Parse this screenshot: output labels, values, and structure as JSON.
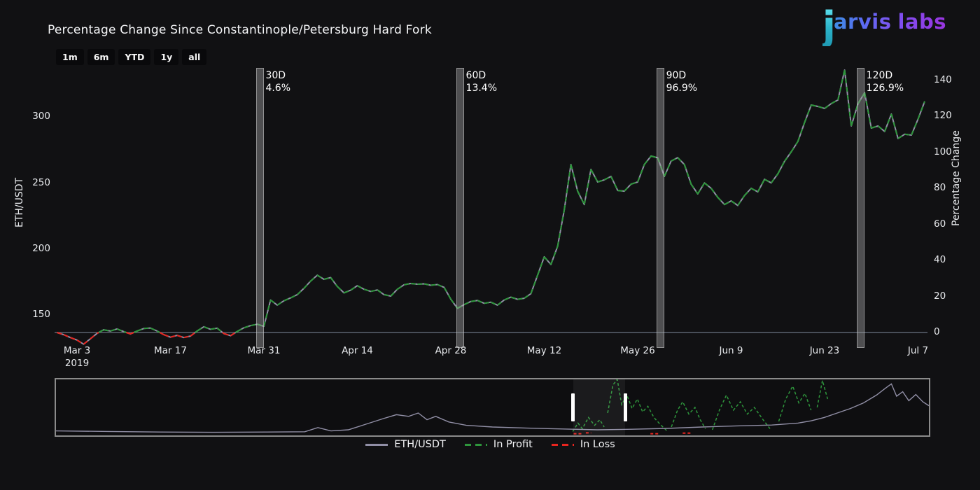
{
  "header": {
    "logo": {
      "j": "j",
      "arvis": "arvis",
      "labs": "labs"
    }
  },
  "range_selector": {
    "buttons": [
      "1m",
      "6m",
      "YTD",
      "1y",
      "all"
    ]
  },
  "chart_data": {
    "type": "line",
    "title": "Percentage Change Since Constantinople/Petersburg Hard Fork",
    "x_axis": {
      "tick_labels": [
        "Mar 3",
        "Mar 17",
        "Mar 31",
        "Apr 14",
        "Apr 28",
        "May 12",
        "May 26",
        "Jun 9",
        "Jun 23",
        "Jul 7"
      ],
      "tick_days": [
        3,
        17,
        31,
        45,
        59,
        73,
        87,
        101,
        115,
        129
      ],
      "year_label": "2019"
    },
    "left_axis": {
      "title": "ETH/USDT",
      "ticks": [
        150,
        200,
        250,
        300
      ],
      "base_price": 136.7
    },
    "right_axis": {
      "title": "Percentage Change",
      "ticks": [
        0,
        20,
        40,
        60,
        80,
        100,
        120,
        140
      ]
    },
    "series": {
      "name": "ETH/USDT",
      "x_unit": "days_since_fork",
      "pct_by_day": [
        0,
        -1.2,
        -2.8,
        -4.2,
        -6.5,
        -3.5,
        -0.5,
        1.5,
        0.8,
        2,
        0.5,
        -0.8,
        0.8,
        2.2,
        2.5,
        0.8,
        -1.2,
        -2.6,
        -1.6,
        -2.8,
        -2,
        0.8,
        3.2,
        1.8,
        2.4,
        -0.6,
        -1.8,
        0.6,
        2.6,
        3.8,
        4.6,
        3.4,
        18,
        15.2,
        17.6,
        19.2,
        21,
        24.5,
        28.5,
        31.8,
        29.5,
        30.5,
        25.5,
        22,
        23.5,
        26,
        24,
        22.8,
        23.6,
        21,
        20.2,
        24,
        26.5,
        27.2,
        26.8,
        27,
        26.2,
        26.6,
        25,
        18.5,
        13.4,
        15.5,
        17.2,
        17.8,
        16.2,
        16.8,
        15.2,
        18,
        19.6,
        18.4,
        19,
        21.5,
        31.8,
        42,
        37.7,
        47.8,
        68,
        93.2,
        78.4,
        71,
        90.5,
        83.5,
        84.7,
        86.6,
        78.8,
        78.4,
        82.3,
        83.5,
        93.2,
        97.9,
        96.9,
        86.6,
        95.1,
        97,
        93.2,
        82.3,
        76.9,
        83,
        80,
        75,
        71,
        73,
        70.5,
        76,
        80,
        78,
        85,
        83,
        88,
        95,
        100.2,
        106,
        116.5,
        126.2,
        125.4,
        124.3,
        127,
        129,
        145.6,
        114.6,
        126.9,
        133,
        113.4,
        114.6,
        111.5,
        121.2,
        107.6,
        110,
        109.5,
        118.4,
        128.2
      ]
    },
    "markers": [
      {
        "day": 30,
        "label": "30D",
        "value": "4.6%"
      },
      {
        "day": 60,
        "label": "60D",
        "value": "13.4%"
      },
      {
        "day": 90,
        "label": "90D",
        "value": "96.9%"
      },
      {
        "day": 120,
        "label": "120D",
        "value": "126.9%"
      }
    ],
    "legend": [
      {
        "label": "ETH/USDT",
        "color": "#918fa6",
        "dash": "solid"
      },
      {
        "label": "In Profit",
        "color": "#2e963c",
        "dash": "dash"
      },
      {
        "label": "In Loss",
        "color": "#e8251f",
        "dash": "dash"
      }
    ],
    "colors": {
      "background": "#111113",
      "line": "#918fa6",
      "profit": "#2e963c",
      "loss": "#e8251f",
      "zero_line": "#97a6bd",
      "marker_bar": "rgba(168,168,168,0.42)",
      "tick_text": "#e9ebee"
    }
  },
  "rangeslider": {
    "handles_frac": [
      0.5926,
      0.652
    ],
    "price_line_norm": [
      [
        0,
        0.92
      ],
      [
        0.06,
        0.93
      ],
      [
        0.12,
        0.94
      ],
      [
        0.18,
        0.945
      ],
      [
        0.24,
        0.94
      ],
      [
        0.285,
        0.935
      ],
      [
        0.3,
        0.86
      ],
      [
        0.315,
        0.92
      ],
      [
        0.335,
        0.9
      ],
      [
        0.355,
        0.8
      ],
      [
        0.375,
        0.7
      ],
      [
        0.39,
        0.63
      ],
      [
        0.404,
        0.66
      ],
      [
        0.415,
        0.6
      ],
      [
        0.425,
        0.72
      ],
      [
        0.435,
        0.66
      ],
      [
        0.45,
        0.76
      ],
      [
        0.47,
        0.82
      ],
      [
        0.5,
        0.85
      ],
      [
        0.54,
        0.87
      ],
      [
        0.58,
        0.885
      ],
      [
        0.62,
        0.9
      ],
      [
        0.66,
        0.89
      ],
      [
        0.7,
        0.875
      ],
      [
        0.74,
        0.85
      ],
      [
        0.78,
        0.83
      ],
      [
        0.82,
        0.815
      ],
      [
        0.85,
        0.78
      ],
      [
        0.865,
        0.74
      ],
      [
        0.88,
        0.68
      ],
      [
        0.895,
        0.6
      ],
      [
        0.91,
        0.52
      ],
      [
        0.925,
        0.42
      ],
      [
        0.94,
        0.28
      ],
      [
        0.95,
        0.16
      ],
      [
        0.957,
        0.08
      ],
      [
        0.963,
        0.3
      ],
      [
        0.97,
        0.22
      ],
      [
        0.977,
        0.38
      ],
      [
        0.985,
        0.27
      ],
      [
        0.993,
        0.4
      ],
      [
        1,
        0.47
      ]
    ],
    "profit_spikes_norm": [
      [
        [
          0.592,
          0.93
        ],
        [
          0.598,
          0.78
        ],
        [
          0.603,
          0.88
        ],
        [
          0.61,
          0.68
        ],
        [
          0.617,
          0.82
        ],
        [
          0.623,
          0.72
        ],
        [
          0.628,
          0.85
        ]
      ],
      [
        [
          0.632,
          0.6
        ],
        [
          0.638,
          0.1
        ],
        [
          0.643,
          0.0
        ],
        [
          0.648,
          0.45
        ],
        [
          0.654,
          0.28
        ],
        [
          0.66,
          0.52
        ],
        [
          0.666,
          0.35
        ],
        [
          0.672,
          0.58
        ],
        [
          0.678,
          0.48
        ],
        [
          0.685,
          0.68
        ],
        [
          0.692,
          0.8
        ],
        [
          0.7,
          0.92
        ]
      ],
      [
        [
          0.705,
          0.85
        ],
        [
          0.712,
          0.55
        ],
        [
          0.718,
          0.4
        ],
        [
          0.725,
          0.62
        ],
        [
          0.732,
          0.5
        ],
        [
          0.738,
          0.72
        ],
        [
          0.744,
          0.88
        ]
      ],
      [
        [
          0.752,
          0.9
        ],
        [
          0.76,
          0.55
        ],
        [
          0.768,
          0.28
        ],
        [
          0.776,
          0.55
        ],
        [
          0.784,
          0.4
        ],
        [
          0.792,
          0.62
        ],
        [
          0.8,
          0.5
        ],
        [
          0.81,
          0.72
        ],
        [
          0.818,
          0.88
        ]
      ],
      [
        [
          0.828,
          0.75
        ],
        [
          0.836,
          0.35
        ],
        [
          0.844,
          0.12
        ],
        [
          0.851,
          0.42
        ],
        [
          0.858,
          0.25
        ],
        [
          0.865,
          0.55
        ]
      ],
      [
        [
          0.872,
          0.5
        ],
        [
          0.878,
          0.02
        ],
        [
          0.884,
          0.35
        ]
      ]
    ],
    "loss_dashes_norm": [
      [
        0.593,
        0.97,
        0.604,
        0.97
      ],
      [
        0.607,
        0.955,
        0.613,
        0.955
      ],
      [
        0.681,
        0.97,
        0.69,
        0.97
      ],
      [
        0.718,
        0.96,
        0.728,
        0.96
      ]
    ]
  }
}
